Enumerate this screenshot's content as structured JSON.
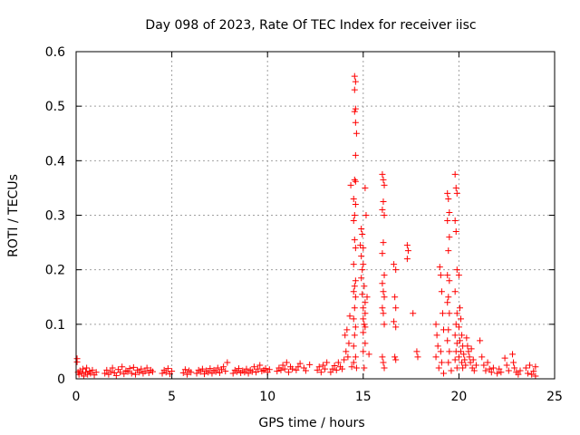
{
  "chart_data": {
    "type": "scatter",
    "title": "Day 098 of 2023, Rate Of TEC Index for receiver iisc",
    "xlabel": "GPS time / hours",
    "ylabel": "ROTI / TECUs",
    "xlim": [
      0,
      25
    ],
    "ylim": [
      0,
      0.6
    ],
    "xticks": [
      "0",
      "5",
      "10",
      "15",
      "20",
      "25"
    ],
    "yticks": [
      "0",
      "0.1",
      "0.2",
      "0.3",
      "0.4",
      "0.5",
      "0.6"
    ],
    "grid": true,
    "marker": "+",
    "color": "#ff0000",
    "series": [
      {
        "name": "ROTI",
        "points": [
          [
            0.05,
            0.037
          ],
          [
            0.05,
            0.031
          ],
          [
            0.1,
            0.012
          ],
          [
            0.15,
            0.008
          ],
          [
            0.2,
            0.015
          ],
          [
            0.3,
            0.01
          ],
          [
            0.35,
            0.018
          ],
          [
            0.4,
            0.005
          ],
          [
            0.5,
            0.012
          ],
          [
            0.55,
            0.02
          ],
          [
            0.6,
            0.008
          ],
          [
            0.7,
            0.014
          ],
          [
            0.75,
            0.01
          ],
          [
            0.85,
            0.016
          ],
          [
            0.95,
            0.007
          ],
          [
            1.05,
            0.012
          ],
          [
            1.5,
            0.01
          ],
          [
            1.6,
            0.016
          ],
          [
            1.7,
            0.008
          ],
          [
            1.8,
            0.013
          ],
          [
            1.9,
            0.02
          ],
          [
            2.0,
            0.011
          ],
          [
            2.1,
            0.006
          ],
          [
            2.2,
            0.017
          ],
          [
            2.3,
            0.012
          ],
          [
            2.4,
            0.022
          ],
          [
            2.5,
            0.009
          ],
          [
            2.6,
            0.015
          ],
          [
            2.7,
            0.013
          ],
          [
            2.8,
            0.019
          ],
          [
            2.9,
            0.01
          ],
          [
            3.0,
            0.021
          ],
          [
            3.1,
            0.008
          ],
          [
            3.2,
            0.016
          ],
          [
            3.3,
            0.012
          ],
          [
            3.4,
            0.018
          ],
          [
            3.5,
            0.01
          ],
          [
            3.6,
            0.014
          ],
          [
            3.7,
            0.02
          ],
          [
            3.8,
            0.011
          ],
          [
            3.9,
            0.016
          ],
          [
            4.0,
            0.013
          ],
          [
            4.5,
            0.01
          ],
          [
            4.6,
            0.016
          ],
          [
            4.7,
            0.012
          ],
          [
            4.8,
            0.019
          ],
          [
            4.9,
            0.009
          ],
          [
            5.0,
            0.014
          ],
          [
            5.6,
            0.011
          ],
          [
            5.7,
            0.017
          ],
          [
            5.8,
            0.008
          ],
          [
            5.9,
            0.015
          ],
          [
            6.0,
            0.012
          ],
          [
            6.3,
            0.01
          ],
          [
            6.4,
            0.016
          ],
          [
            6.5,
            0.013
          ],
          [
            6.6,
            0.018
          ],
          [
            6.7,
            0.009
          ],
          [
            6.8,
            0.015
          ],
          [
            6.9,
            0.012
          ],
          [
            7.0,
            0.019
          ],
          [
            7.1,
            0.01
          ],
          [
            7.2,
            0.016
          ],
          [
            7.3,
            0.013
          ],
          [
            7.4,
            0.02
          ],
          [
            7.5,
            0.011
          ],
          [
            7.6,
            0.017
          ],
          [
            7.7,
            0.022
          ],
          [
            7.8,
            0.014
          ],
          [
            7.9,
            0.03
          ],
          [
            8.2,
            0.01
          ],
          [
            8.3,
            0.016
          ],
          [
            8.4,
            0.013
          ],
          [
            8.5,
            0.019
          ],
          [
            8.6,
            0.011
          ],
          [
            8.7,
            0.015
          ],
          [
            8.8,
            0.012
          ],
          [
            8.9,
            0.018
          ],
          [
            9.0,
            0.01
          ],
          [
            9.1,
            0.016
          ],
          [
            9.2,
            0.013
          ],
          [
            9.3,
            0.022
          ],
          [
            9.4,
            0.012
          ],
          [
            9.5,
            0.018
          ],
          [
            9.6,
            0.025
          ],
          [
            9.7,
            0.014
          ],
          [
            9.8,
            0.016
          ],
          [
            9.9,
            0.019
          ],
          [
            10.0,
            0.012
          ],
          [
            10.1,
            0.017
          ],
          [
            10.5,
            0.014
          ],
          [
            10.6,
            0.02
          ],
          [
            10.7,
            0.016
          ],
          [
            10.8,
            0.025
          ],
          [
            10.9,
            0.018
          ],
          [
            11.0,
            0.03
          ],
          [
            11.1,
            0.012
          ],
          [
            11.2,
            0.022
          ],
          [
            11.3,
            0.018
          ],
          [
            11.5,
            0.016
          ],
          [
            11.6,
            0.022
          ],
          [
            11.7,
            0.028
          ],
          [
            11.9,
            0.02
          ],
          [
            12.0,
            0.015
          ],
          [
            12.2,
            0.026
          ],
          [
            12.6,
            0.016
          ],
          [
            12.7,
            0.022
          ],
          [
            12.8,
            0.012
          ],
          [
            12.9,
            0.025
          ],
          [
            13.0,
            0.018
          ],
          [
            13.1,
            0.03
          ],
          [
            13.3,
            0.012
          ],
          [
            13.4,
            0.018
          ],
          [
            13.5,
            0.024
          ],
          [
            13.6,
            0.016
          ],
          [
            13.7,
            0.03
          ],
          [
            13.8,
            0.022
          ],
          [
            13.9,
            0.018
          ],
          [
            14.0,
            0.035
          ],
          [
            14.05,
            0.08
          ],
          [
            14.1,
            0.05
          ],
          [
            14.15,
            0.09
          ],
          [
            14.2,
            0.04
          ],
          [
            14.25,
            0.065
          ],
          [
            14.3,
            0.115
          ],
          [
            14.35,
            0.355
          ],
          [
            14.4,
            0.022
          ],
          [
            14.5,
            0.03
          ],
          [
            14.55,
            0.555
          ],
          [
            14.6,
            0.545
          ],
          [
            14.55,
            0.53
          ],
          [
            14.6,
            0.495
          ],
          [
            14.55,
            0.49
          ],
          [
            14.6,
            0.47
          ],
          [
            14.65,
            0.45
          ],
          [
            14.6,
            0.41
          ],
          [
            14.55,
            0.365
          ],
          [
            14.6,
            0.362
          ],
          [
            14.5,
            0.33
          ],
          [
            14.6,
            0.32
          ],
          [
            14.55,
            0.3
          ],
          [
            14.5,
            0.29
          ],
          [
            14.55,
            0.255
          ],
          [
            14.6,
            0.24
          ],
          [
            14.5,
            0.21
          ],
          [
            14.6,
            0.18
          ],
          [
            14.55,
            0.17
          ],
          [
            14.5,
            0.16
          ],
          [
            14.6,
            0.15
          ],
          [
            14.55,
            0.13
          ],
          [
            14.5,
            0.11
          ],
          [
            14.6,
            0.095
          ],
          [
            14.55,
            0.08
          ],
          [
            14.5,
            0.06
          ],
          [
            14.6,
            0.04
          ],
          [
            14.65,
            0.02
          ],
          [
            14.9,
            0.275
          ],
          [
            14.95,
            0.265
          ],
          [
            14.85,
            0.245
          ],
          [
            15.0,
            0.24
          ],
          [
            14.9,
            0.225
          ],
          [
            15.0,
            0.21
          ],
          [
            14.95,
            0.2
          ],
          [
            14.9,
            0.185
          ],
          [
            15.05,
            0.17
          ],
          [
            14.95,
            0.155
          ],
          [
            15.1,
            0.14
          ],
          [
            15.0,
            0.13
          ],
          [
            15.1,
            0.12
          ],
          [
            15.0,
            0.11
          ],
          [
            15.05,
            0.1
          ],
          [
            15.1,
            0.095
          ],
          [
            15.0,
            0.085
          ],
          [
            15.1,
            0.065
          ],
          [
            15.0,
            0.05
          ],
          [
            15.05,
            0.02
          ],
          [
            15.15,
            0.3
          ],
          [
            15.1,
            0.35
          ],
          [
            15.2,
            0.15
          ],
          [
            15.3,
            0.045
          ],
          [
            16.0,
            0.375
          ],
          [
            16.05,
            0.365
          ],
          [
            16.1,
            0.355
          ],
          [
            16.05,
            0.325
          ],
          [
            16.0,
            0.31
          ],
          [
            16.1,
            0.3
          ],
          [
            16.05,
            0.25
          ],
          [
            16.0,
            0.23
          ],
          [
            16.1,
            0.19
          ],
          [
            16.0,
            0.175
          ],
          [
            16.05,
            0.16
          ],
          [
            16.1,
            0.15
          ],
          [
            16.0,
            0.13
          ],
          [
            16.05,
            0.12
          ],
          [
            16.1,
            0.1
          ],
          [
            16.0,
            0.04
          ],
          [
            16.05,
            0.03
          ],
          [
            16.1,
            0.02
          ],
          [
            16.6,
            0.21
          ],
          [
            16.7,
            0.2
          ],
          [
            16.65,
            0.15
          ],
          [
            16.7,
            0.13
          ],
          [
            16.6,
            0.105
          ],
          [
            16.7,
            0.095
          ],
          [
            16.65,
            0.04
          ],
          [
            16.7,
            0.035
          ],
          [
            17.3,
            0.245
          ],
          [
            17.35,
            0.235
          ],
          [
            17.3,
            0.22
          ],
          [
            17.6,
            0.12
          ],
          [
            17.8,
            0.05
          ],
          [
            17.85,
            0.04
          ],
          [
            18.8,
            0.1
          ],
          [
            18.85,
            0.08
          ],
          [
            18.9,
            0.06
          ],
          [
            18.8,
            0.04
          ],
          [
            18.95,
            0.02
          ],
          [
            19.0,
            0.205
          ],
          [
            19.05,
            0.19
          ],
          [
            19.1,
            0.16
          ],
          [
            19.15,
            0.12
          ],
          [
            19.2,
            0.09
          ],
          [
            19.05,
            0.05
          ],
          [
            19.1,
            0.03
          ],
          [
            19.2,
            0.01
          ],
          [
            19.4,
            0.34
          ],
          [
            19.45,
            0.33
          ],
          [
            19.5,
            0.305
          ],
          [
            19.4,
            0.29
          ],
          [
            19.5,
            0.26
          ],
          [
            19.45,
            0.235
          ],
          [
            19.4,
            0.19
          ],
          [
            19.5,
            0.18
          ],
          [
            19.45,
            0.15
          ],
          [
            19.4,
            0.14
          ],
          [
            19.5,
            0.12
          ],
          [
            19.45,
            0.09
          ],
          [
            19.4,
            0.07
          ],
          [
            19.5,
            0.05
          ],
          [
            19.45,
            0.03
          ],
          [
            19.6,
            0.015
          ],
          [
            19.8,
            0.375
          ],
          [
            19.85,
            0.35
          ],
          [
            19.9,
            0.34
          ],
          [
            19.8,
            0.29
          ],
          [
            19.85,
            0.27
          ],
          [
            19.9,
            0.2
          ],
          [
            19.8,
            0.16
          ],
          [
            19.9,
            0.12
          ],
          [
            19.85,
            0.1
          ],
          [
            19.8,
            0.08
          ],
          [
            19.9,
            0.065
          ],
          [
            19.85,
            0.05
          ],
          [
            19.8,
            0.035
          ],
          [
            19.9,
            0.02
          ],
          [
            20.0,
            0.19
          ],
          [
            20.05,
            0.13
          ],
          [
            20.1,
            0.11
          ],
          [
            20.0,
            0.095
          ],
          [
            20.15,
            0.08
          ],
          [
            20.05,
            0.07
          ],
          [
            20.2,
            0.06
          ],
          [
            20.1,
            0.05
          ],
          [
            20.25,
            0.045
          ],
          [
            20.0,
            0.04
          ],
          [
            20.3,
            0.035
          ],
          [
            20.15,
            0.03
          ],
          [
            20.35,
            0.025
          ],
          [
            20.2,
            0.02
          ],
          [
            20.4,
            0.075
          ],
          [
            20.45,
            0.06
          ],
          [
            20.5,
            0.05
          ],
          [
            20.55,
            0.04
          ],
          [
            20.6,
            0.03
          ],
          [
            20.65,
            0.055
          ],
          [
            20.7,
            0.02
          ],
          [
            20.75,
            0.035
          ],
          [
            20.8,
            0.015
          ],
          [
            20.9,
            0.025
          ],
          [
            21.1,
            0.07
          ],
          [
            21.2,
            0.04
          ],
          [
            21.3,
            0.025
          ],
          [
            21.4,
            0.015
          ],
          [
            21.5,
            0.03
          ],
          [
            21.6,
            0.018
          ],
          [
            21.7,
            0.012
          ],
          [
            21.8,
            0.02
          ],
          [
            22.0,
            0.01
          ],
          [
            22.1,
            0.018
          ],
          [
            22.2,
            0.012
          ],
          [
            22.4,
            0.038
          ],
          [
            22.5,
            0.025
          ],
          [
            22.6,
            0.015
          ],
          [
            22.8,
            0.045
          ],
          [
            22.85,
            0.03
          ],
          [
            22.9,
            0.02
          ],
          [
            23.0,
            0.012
          ],
          [
            23.1,
            0.008
          ],
          [
            23.2,
            0.015
          ],
          [
            23.5,
            0.02
          ],
          [
            23.6,
            0.01
          ],
          [
            23.7,
            0.025
          ],
          [
            23.8,
            0.008
          ],
          [
            23.9,
            0.014
          ],
          [
            24.0,
            0.022
          ],
          [
            24.0,
            0.005
          ]
        ]
      }
    ]
  }
}
